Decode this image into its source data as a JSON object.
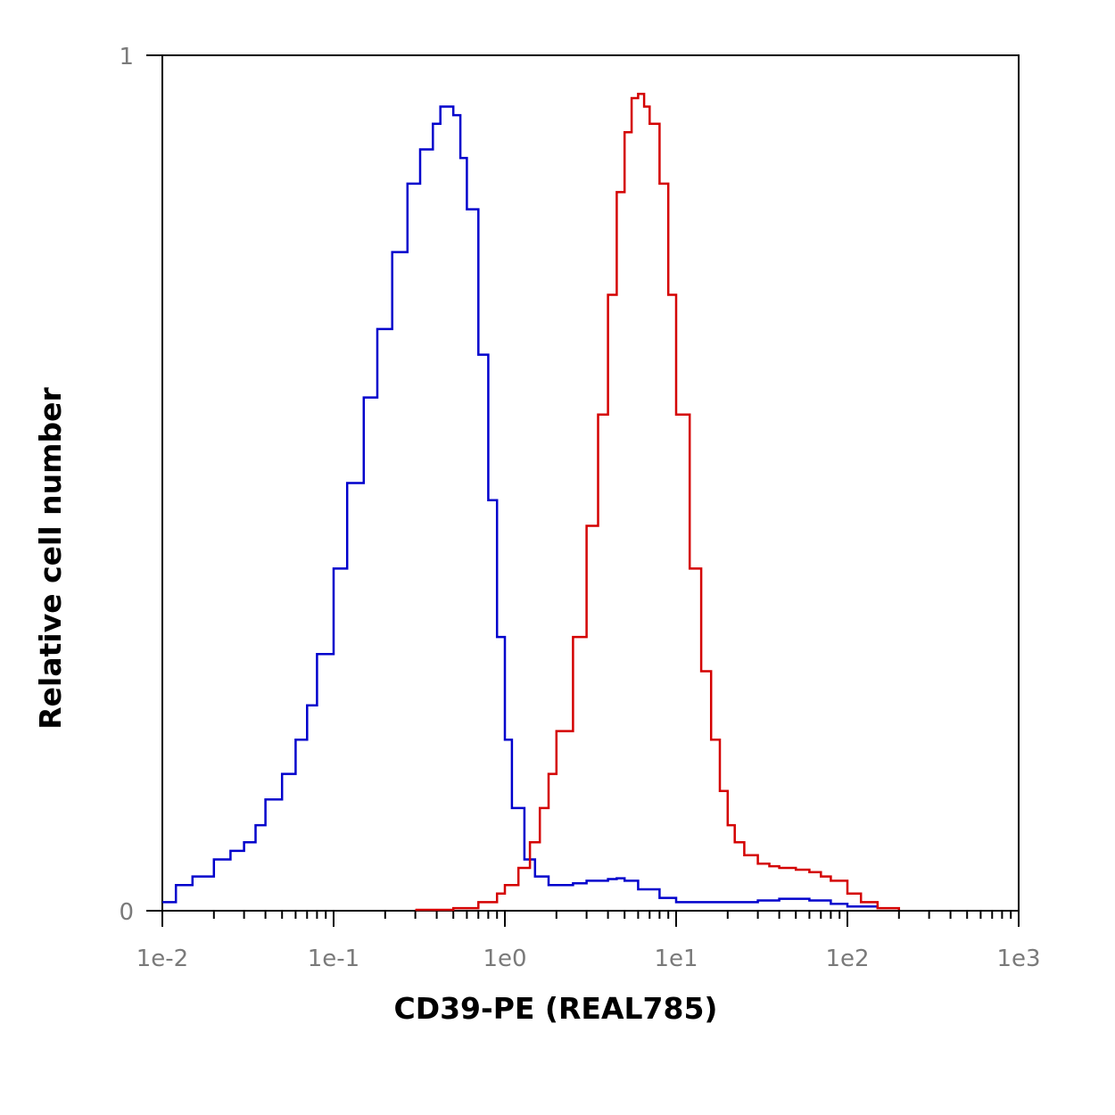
{
  "chart_data": {
    "type": "line",
    "xlabel": "CD39-PE (REAL785)",
    "ylabel": "Relative cell number",
    "xscale": "log",
    "xlim": [
      0.01,
      1000
    ],
    "ylim": [
      0,
      1
    ],
    "grid": false,
    "legend": "none",
    "x_ticks": [
      {
        "value": 0.01,
        "label": "1e-2"
      },
      {
        "value": 0.1,
        "label": "1e-1"
      },
      {
        "value": 1,
        "label": "1e0"
      },
      {
        "value": 10,
        "label": "1e1"
      },
      {
        "value": 100,
        "label": "1e2"
      },
      {
        "value": 1000,
        "label": "1e3"
      }
    ],
    "y_ticks": [
      {
        "value": 0,
        "label": "0"
      },
      {
        "value": 1,
        "label": "1"
      }
    ],
    "series": [
      {
        "color": "#0000cc",
        "x": [
          0.01,
          0.012,
          0.015,
          0.02,
          0.025,
          0.03,
          0.035,
          0.04,
          0.05,
          0.06,
          0.07,
          0.08,
          0.1,
          0.12,
          0.15,
          0.18,
          0.22,
          0.27,
          0.32,
          0.38,
          0.42,
          0.45,
          0.5,
          0.55,
          0.6,
          0.7,
          0.8,
          0.9,
          1.0,
          1.1,
          1.3,
          1.5,
          1.8,
          2.0,
          2.5,
          3.0,
          4.0,
          4.5,
          5.0,
          6.0,
          8.0,
          10,
          15,
          20,
          30,
          40,
          50,
          60,
          80,
          100,
          150
        ],
        "y": [
          0.01,
          0.03,
          0.04,
          0.06,
          0.07,
          0.08,
          0.1,
          0.13,
          0.16,
          0.2,
          0.24,
          0.3,
          0.4,
          0.5,
          0.6,
          0.68,
          0.77,
          0.85,
          0.89,
          0.92,
          0.94,
          0.94,
          0.93,
          0.88,
          0.82,
          0.65,
          0.48,
          0.32,
          0.2,
          0.12,
          0.06,
          0.04,
          0.03,
          0.03,
          0.032,
          0.035,
          0.037,
          0.038,
          0.035,
          0.025,
          0.015,
          0.01,
          0.01,
          0.01,
          0.012,
          0.014,
          0.014,
          0.012,
          0.008,
          0.005,
          0.003
        ]
      },
      {
        "color": "#d40000",
        "x": [
          0.3,
          0.5,
          0.7,
          0.9,
          1.0,
          1.2,
          1.4,
          1.6,
          1.8,
          2.0,
          2.5,
          3.0,
          3.5,
          4.0,
          4.5,
          5.0,
          5.5,
          6.0,
          6.5,
          7.0,
          8.0,
          9.0,
          10,
          12,
          14,
          16,
          18,
          20,
          22,
          25,
          30,
          35,
          40,
          50,
          60,
          70,
          80,
          100,
          120,
          150,
          200
        ],
        "y": [
          0.001,
          0.003,
          0.01,
          0.02,
          0.03,
          0.05,
          0.08,
          0.12,
          0.16,
          0.21,
          0.32,
          0.45,
          0.58,
          0.72,
          0.84,
          0.91,
          0.95,
          0.955,
          0.94,
          0.92,
          0.85,
          0.72,
          0.58,
          0.4,
          0.28,
          0.2,
          0.14,
          0.1,
          0.08,
          0.065,
          0.055,
          0.052,
          0.05,
          0.048,
          0.045,
          0.04,
          0.035,
          0.02,
          0.01,
          0.003,
          0.001
        ]
      }
    ]
  }
}
